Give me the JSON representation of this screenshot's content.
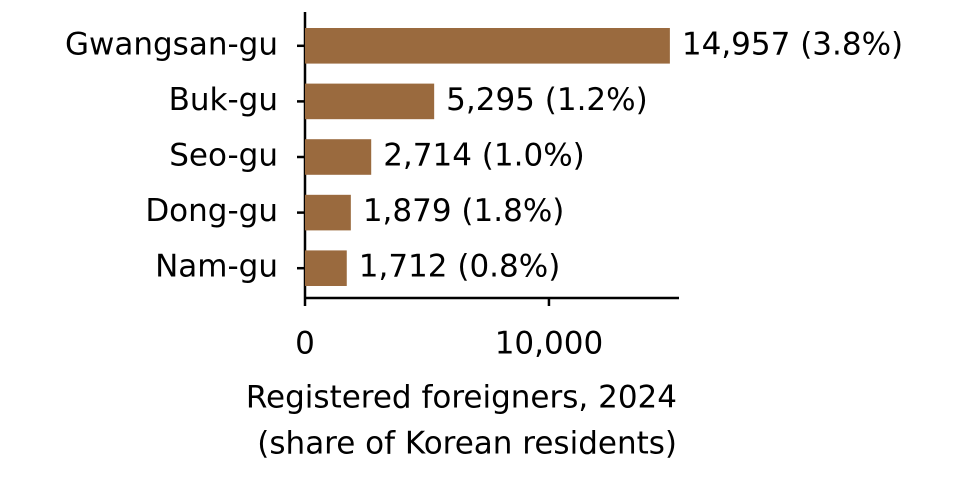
{
  "chart_data": {
    "type": "barh",
    "categories": [
      "Gwangsan-gu",
      "Buk-gu",
      "Seo-gu",
      "Dong-gu",
      "Nam-gu"
    ],
    "values": [
      14957,
      5295,
      2714,
      1879,
      1712
    ],
    "value_labels": [
      "14,957 (3.8%)",
      "5,295 (1.2%)",
      "2,714 (1.0%)",
      "1,879 (1.8%)",
      "1,712 (0.8%)"
    ],
    "color": "#9a6a3e",
    "xlim": [
      0,
      15331
    ],
    "xticks": [
      0,
      {
        "value": 10000,
        "label": "10,000"
      }
    ],
    "xlabel": [
      "Registered foreigners, 2024",
      "(share of Korean residents)"
    ]
  }
}
